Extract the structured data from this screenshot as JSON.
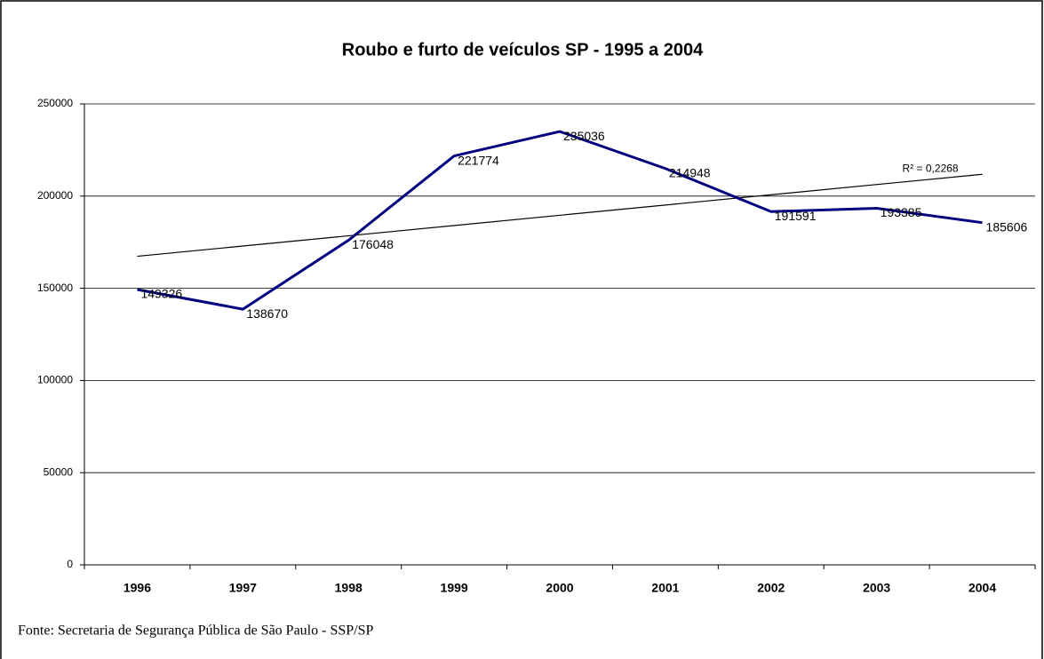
{
  "chart_data": {
    "type": "line",
    "title": "Roubo e furto de veículos SP - 1995 a 2004",
    "categories": [
      "1996",
      "1997",
      "1998",
      "1999",
      "2000",
      "2001",
      "2002",
      "2003",
      "2004"
    ],
    "series": [
      {
        "color": "#000080",
        "values": [
          149326,
          138670,
          176048,
          221774,
          235036,
          214948,
          191591,
          193385,
          185606
        ]
      }
    ],
    "trendline": {
      "label": "R² = 0,2268",
      "color": "#000000",
      "values": [
        167363,
        211833
      ]
    },
    "ylim": [
      0,
      250000
    ],
    "yticks": [
      0,
      50000,
      100000,
      150000,
      200000,
      250000
    ],
    "grid": true
  },
  "source": "Fonte: Secretaria de Segurança Pública de São Paulo - SSP/SP"
}
